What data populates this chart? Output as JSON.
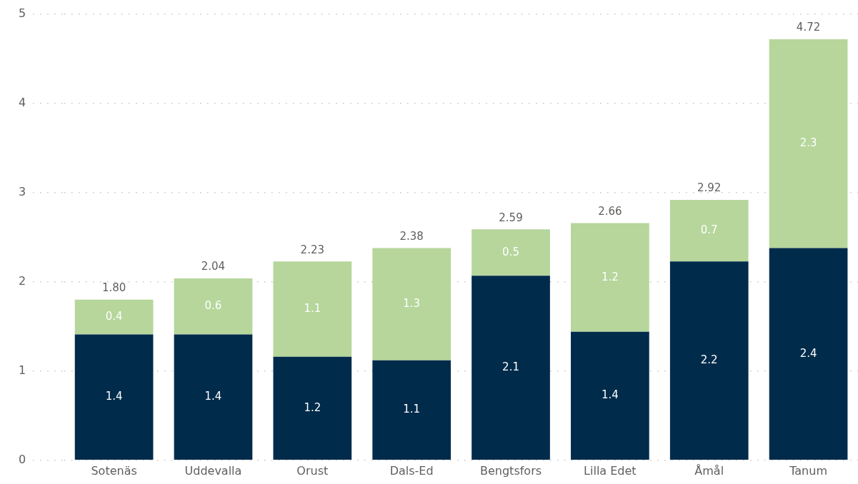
{
  "chart_data": {
    "type": "bar",
    "stacked": true,
    "categories": [
      "Sotenäs",
      "Uddevalla",
      "Orust",
      "Dals-Ed",
      "Bengtsfors",
      "Lilla Edet",
      "Åmål",
      "Tanum"
    ],
    "series": [
      {
        "color": "#012b4b",
        "values": [
          1.41,
          1.41,
          1.16,
          1.12,
          2.07,
          1.44,
          2.23,
          2.38
        ],
        "value_labels": [
          "1.4",
          "1.4",
          "1.2",
          "1.1",
          "2.1",
          "1.4",
          "2.2",
          "2.4"
        ]
      },
      {
        "color": "#b6d69b",
        "values": [
          0.39,
          0.63,
          1.07,
          1.26,
          0.52,
          1.22,
          0.69,
          2.34
        ],
        "value_labels": [
          "0.4",
          "0.6",
          "1.1",
          "1.3",
          "0.5",
          "1.2",
          "0.7",
          "2.3"
        ]
      }
    ],
    "totals": [
      "1.80",
      "2.04",
      "2.23",
      "2.38",
      "2.59",
      "2.66",
      "2.92",
      "4.72"
    ],
    "ylim": [
      0,
      5
    ],
    "yticks": [
      0,
      1,
      2,
      3,
      4,
      5
    ],
    "grid": "y",
    "legend": false
  }
}
